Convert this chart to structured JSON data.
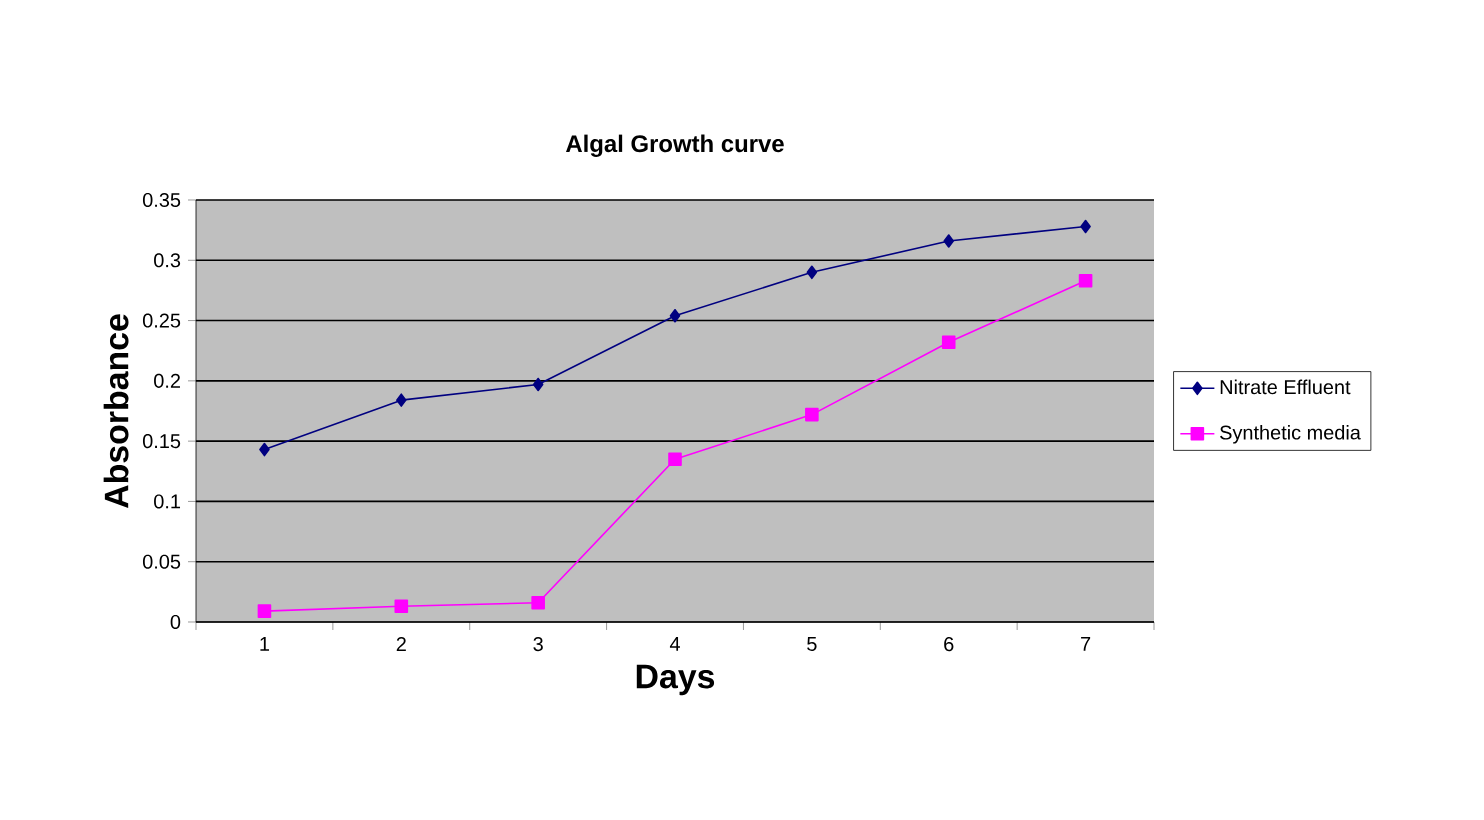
{
  "chart_data": {
    "type": "line",
    "title": "Algal Growth curve",
    "xlabel": "Days",
    "ylabel": "Absorbance",
    "categories": [
      "1",
      "2",
      "3",
      "4",
      "5",
      "6",
      "7"
    ],
    "series": [
      {
        "name": "Nitrate Effluent",
        "color": "#000080",
        "marker": "diamond",
        "values": [
          0.143,
          0.184,
          0.197,
          0.254,
          0.29,
          0.316,
          0.328
        ]
      },
      {
        "name": "Synthetic media",
        "color": "#ff00ff",
        "marker": "square",
        "values": [
          0.009,
          0.013,
          0.016,
          0.135,
          0.172,
          0.232,
          0.283
        ]
      }
    ],
    "ylim": [
      0,
      0.35
    ],
    "yticks": [
      0,
      0.05,
      0.1,
      0.15,
      0.2,
      0.25,
      0.3,
      0.35
    ],
    "grid": "y",
    "legend": "right"
  }
}
